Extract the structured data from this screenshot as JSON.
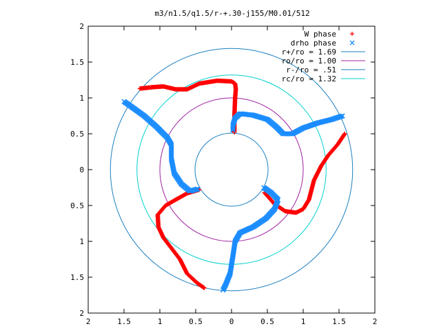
{
  "chart_data": {
    "type": "scatter",
    "title": "m3/n1.5/q1.5/r-+.30-j155/M0.01/512",
    "xlim": [
      -2,
      2
    ],
    "ylim": [
      -2,
      2
    ],
    "x_ticks": [
      -2,
      -1.5,
      -1,
      -0.5,
      0,
      0.5,
      1,
      1.5,
      2
    ],
    "y_ticks": [
      -2,
      -1.5,
      -1,
      -0.5,
      0,
      0.5,
      1,
      1.5,
      2
    ],
    "x_tick_labels": [
      "2",
      "1.5",
      "1",
      "0.5",
      "0",
      "0.5",
      "1",
      "1.5",
      "2"
    ],
    "y_tick_labels": [
      "2",
      "1.5",
      "1",
      "0.5",
      "0",
      "0.5",
      "1",
      "1.5",
      "2"
    ],
    "grid": false,
    "legend_position": "top-right",
    "series": [
      {
        "name": "W phase",
        "marker": "+",
        "color": "#ff0000",
        "arms": [
          [
            [
              0.04,
              0.52
            ],
            [
              0.04,
              0.75
            ],
            [
              0.05,
              1.0
            ],
            [
              0.06,
              1.12
            ],
            [
              0.05,
              1.2
            ],
            [
              0.0,
              1.23
            ],
            [
              -0.2,
              1.24
            ],
            [
              -0.45,
              1.2
            ],
            [
              -0.62,
              1.12
            ],
            [
              -0.78,
              1.12
            ],
            [
              -0.95,
              1.16
            ],
            [
              -1.1,
              1.15
            ],
            [
              -1.28,
              1.13
            ]
          ],
          [
            [
              -0.45,
              -0.28
            ],
            [
              -0.62,
              -0.33
            ],
            [
              -0.78,
              -0.42
            ],
            [
              -0.92,
              -0.5
            ],
            [
              -1.03,
              -0.63
            ],
            [
              -1.02,
              -0.8
            ],
            [
              -0.95,
              -0.95
            ],
            [
              -0.85,
              -1.08
            ],
            [
              -0.72,
              -1.25
            ],
            [
              -0.62,
              -1.45
            ],
            [
              -0.48,
              -1.58
            ],
            [
              -0.38,
              -1.65
            ]
          ],
          [
            [
              0.46,
              -0.32
            ],
            [
              0.6,
              -0.48
            ],
            [
              0.75,
              -0.58
            ],
            [
              0.9,
              -0.6
            ],
            [
              1.0,
              -0.55
            ],
            [
              1.08,
              -0.42
            ],
            [
              1.15,
              -0.15
            ],
            [
              1.25,
              0.05
            ],
            [
              1.35,
              0.2
            ],
            [
              1.48,
              0.35
            ],
            [
              1.58,
              0.5
            ]
          ]
        ]
      },
      {
        "name": "drho phase",
        "marker": "x",
        "color": "#1a8cff",
        "arms": [
          [
            [
              0.02,
              0.55
            ],
            [
              0.02,
              0.62
            ],
            [
              0.05,
              0.72
            ],
            [
              0.12,
              0.78
            ],
            [
              0.3,
              0.76
            ],
            [
              0.5,
              0.7
            ],
            [
              0.62,
              0.6
            ],
            [
              0.72,
              0.5
            ],
            [
              0.85,
              0.5
            ],
            [
              1.0,
              0.58
            ],
            [
              1.2,
              0.65
            ],
            [
              1.4,
              0.7
            ],
            [
              1.55,
              0.75
            ]
          ],
          [
            [
              0.45,
              -0.25
            ],
            [
              0.55,
              -0.32
            ],
            [
              0.65,
              -0.42
            ],
            [
              0.6,
              -0.55
            ],
            [
              0.48,
              -0.68
            ],
            [
              0.3,
              -0.8
            ],
            [
              0.12,
              -0.88
            ],
            [
              0.05,
              -1.0
            ],
            [
              0.02,
              -1.2
            ],
            [
              -0.02,
              -1.45
            ],
            [
              -0.08,
              -1.6
            ],
            [
              -0.12,
              -1.68
            ]
          ],
          [
            [
              -0.47,
              -0.27
            ],
            [
              -0.58,
              -0.3
            ],
            [
              -0.7,
              -0.2
            ],
            [
              -0.8,
              -0.05
            ],
            [
              -0.84,
              0.15
            ],
            [
              -0.84,
              0.35
            ],
            [
              -0.9,
              0.45
            ],
            [
              -1.05,
              0.6
            ],
            [
              -1.22,
              0.75
            ],
            [
              -1.4,
              0.88
            ],
            [
              -1.5,
              0.95
            ]
          ]
        ]
      },
      {
        "name": "r+/ro = 1.69",
        "type": "circle",
        "r": 1.69,
        "color": "#1a7fc0"
      },
      {
        "name": "ro/ro = 1.00",
        "type": "circle",
        "r": 1.0,
        "color": "#a020a0"
      },
      {
        "name": "r-/ro = .51",
        "type": "circle",
        "r": 0.51,
        "color": "#1a7fc0"
      },
      {
        "name": "rc/ro = 1.32",
        "type": "circle",
        "r": 1.32,
        "color": "#00d0d0"
      }
    ]
  }
}
